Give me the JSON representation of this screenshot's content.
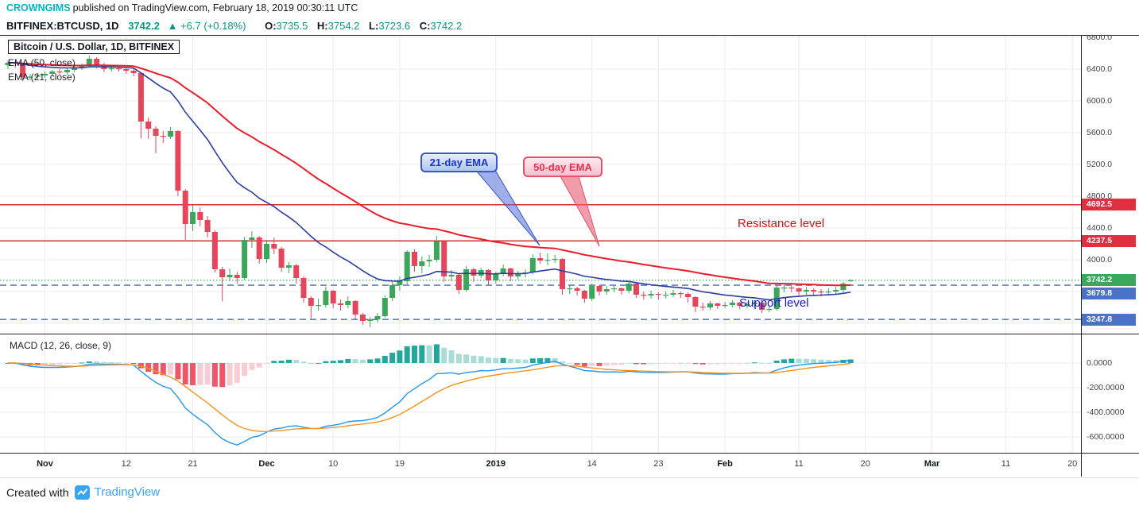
{
  "publish_bar": {
    "author": "CROWNGIMS",
    "text": "published on TradingView.com, February 18, 2019 00:30:11 UTC"
  },
  "symbol_bar": {
    "symbol": "BITFINEX:BTCUSD, 1D",
    "last": "3742.2",
    "change": "▲ +6.7 (+0.18%)",
    "o_label": "O:",
    "o": "3735.5",
    "h_label": "H:",
    "h": "3754.2",
    "l_label": "L:",
    "l": "3723.6",
    "c_label": "C:",
    "c": "3742.2"
  },
  "legend": {
    "title": "Bitcoin / U.S. Dollar, 1D, BITFINEX",
    "ema50": "EMA (50, close)",
    "ema21": "EMA (21, close)",
    "macd": "MACD (12, 26, close, 9)"
  },
  "annotations": {
    "ema21_callout": "21-day EMA",
    "ema50_callout": "50-day EMA",
    "resistance": "Resistance level",
    "support": "Support level"
  },
  "footer": {
    "created_with": "Created with",
    "brand": "TradingView"
  },
  "colors": {
    "author_teal": "#00b7c3",
    "quote_green": "#089981",
    "candle_up": "#3CA75A",
    "candle_down": "#E4465B",
    "ema50": "#EC1C2B",
    "ema21": "#2C3E9E",
    "resistance_line": "#D32F2F",
    "support_line": "#5B7FCE",
    "last_line": "#3CA75A",
    "badge_red": "#E22F40",
    "badge_green": "#3CA75A",
    "badge_blue": "#4A72C9",
    "macd_line": "#2196F3",
    "macd_signal": "#F7931E",
    "hist_pos": "#26A69A",
    "hist_pos_light": "#A8DCD4",
    "hist_neg": "#F1556A",
    "hist_neg_light": "#F8CCD4",
    "grid": "#ECECEC",
    "separator": "#23262e",
    "tail_blue": "#3A56C8",
    "tail_red": "#E2536B"
  },
  "chart_data": {
    "type": "candlestick",
    "title": "Bitcoin / U.S. Dollar, 1D, BITFINEX",
    "symbol": "BITFINEX:BTCUSD",
    "interval": "1D",
    "start_date": "2018-10-27",
    "price_axis": [
      {
        "label": "6800.0",
        "value": 6800
      },
      {
        "label": "6400.0",
        "value": 6400
      },
      {
        "label": "6000.0",
        "value": 6000
      },
      {
        "label": "5600.0",
        "value": 5600
      },
      {
        "label": "5200.0",
        "value": 5200
      },
      {
        "label": "4800.0",
        "value": 4800
      },
      {
        "label": "4400.0",
        "value": 4400
      },
      {
        "label": "4000.0",
        "value": 4000
      },
      {
        "label": "3600.0",
        "value": 3600
      },
      {
        "label": "3200.0",
        "value": 3200
      }
    ],
    "macd_axis": [
      {
        "label": "0.0000",
        "value": 0
      },
      {
        "label": "-200.0000",
        "value": -200
      },
      {
        "label": "-400.0000",
        "value": -400
      },
      {
        "label": "-600.0000",
        "value": -600
      }
    ],
    "time_axis": [
      {
        "label": "Nov",
        "index": 5,
        "major": true
      },
      {
        "label": "12",
        "index": 16,
        "major": false
      },
      {
        "label": "21",
        "index": 25,
        "major": false
      },
      {
        "label": "Dec",
        "index": 35,
        "major": true
      },
      {
        "label": "10",
        "index": 44,
        "major": false
      },
      {
        "label": "19",
        "index": 53,
        "major": false
      },
      {
        "label": "2019",
        "index": 66,
        "major": true
      },
      {
        "label": "14",
        "index": 79,
        "major": false
      },
      {
        "label": "23",
        "index": 88,
        "major": false
      },
      {
        "label": "Feb",
        "index": 97,
        "major": true
      },
      {
        "label": "11",
        "index": 107,
        "major": false
      },
      {
        "label": "20",
        "index": 116,
        "major": false
      },
      {
        "label": "Mar",
        "index": 125,
        "major": true
      },
      {
        "label": "11",
        "index": 135,
        "major": false
      },
      {
        "label": "20",
        "index": 144,
        "major": false
      }
    ],
    "levels": [
      {
        "label": "4692.5",
        "value": 4692.5,
        "kind": "resistance"
      },
      {
        "label": "4237.5",
        "value": 4237.5,
        "kind": "resistance"
      },
      {
        "label": "3742.2",
        "value": 3742.2,
        "kind": "last"
      },
      {
        "label": "3679.8",
        "value": 3679.8,
        "kind": "hline"
      },
      {
        "label": "3247.8",
        "value": 3247.8,
        "kind": "support"
      }
    ],
    "overlays": [
      {
        "name": "EMA 50",
        "period": 50
      },
      {
        "name": "EMA 21",
        "period": 21
      }
    ],
    "macd_settings": {
      "fast": 12,
      "slow": 26,
      "source": "close",
      "signal": 9
    },
    "candles": [
      [
        6450,
        6510,
        6400,
        6480
      ],
      [
        6480,
        6500,
        6420,
        6470
      ],
      [
        6470,
        6480,
        6250,
        6300
      ],
      [
        6300,
        6340,
        6260,
        6305
      ],
      [
        6305,
        6350,
        6270,
        6320
      ],
      [
        6320,
        6370,
        6290,
        6340
      ],
      [
        6340,
        6390,
        6310,
        6370
      ],
      [
        6370,
        6400,
        6330,
        6360
      ],
      [
        6360,
        6410,
        6330,
        6390
      ],
      [
        6390,
        6440,
        6360,
        6420
      ],
      [
        6420,
        6470,
        6390,
        6450
      ],
      [
        6450,
        6570,
        6420,
        6530
      ],
      [
        6530,
        6550,
        6410,
        6450
      ],
      [
        6450,
        6480,
        6360,
        6400
      ],
      [
        6400,
        6440,
        6370,
        6410
      ],
      [
        6410,
        6430,
        6370,
        6400
      ],
      [
        6400,
        6420,
        6340,
        6380
      ],
      [
        6380,
        6400,
        6310,
        6350
      ],
      [
        6350,
        6360,
        5530,
        5740
      ],
      [
        5740,
        5790,
        5520,
        5650
      ],
      [
        5650,
        5680,
        5340,
        5560
      ],
      [
        5560,
        5620,
        5470,
        5550
      ],
      [
        5550,
        5670,
        5520,
        5620
      ],
      [
        5620,
        5630,
        4800,
        4870
      ],
      [
        4870,
        4890,
        4250,
        4450
      ],
      [
        4450,
        4690,
        4360,
        4600
      ],
      [
        4600,
        4660,
        4420,
        4500
      ],
      [
        4500,
        4550,
        4280,
        4350
      ],
      [
        4350,
        4370,
        3840,
        3880
      ],
      [
        3880,
        3910,
        3475,
        3780
      ],
      [
        3780,
        3890,
        3730,
        3810
      ],
      [
        3810,
        3850,
        3700,
        3770
      ],
      [
        3770,
        4290,
        3750,
        4250
      ],
      [
        4250,
        4360,
        4150,
        4280
      ],
      [
        4280,
        4300,
        3950,
        4010
      ],
      [
        4010,
        4250,
        3960,
        4200
      ],
      [
        4200,
        4280,
        4070,
        4140
      ],
      [
        4140,
        4160,
        3850,
        3900
      ],
      [
        3900,
        3970,
        3830,
        3930
      ],
      [
        3930,
        3950,
        3700,
        3770
      ],
      [
        3770,
        3790,
        3460,
        3520
      ],
      [
        3520,
        3540,
        3260,
        3420
      ],
      [
        3420,
        3510,
        3360,
        3430
      ],
      [
        3430,
        3660,
        3400,
        3610
      ],
      [
        3610,
        3620,
        3390,
        3450
      ],
      [
        3450,
        3500,
        3360,
        3430
      ],
      [
        3430,
        3540,
        3390,
        3480
      ],
      [
        3480,
        3490,
        3250,
        3310
      ],
      [
        3310,
        3330,
        3180,
        3230
      ],
      [
        3230,
        3280,
        3150,
        3250
      ],
      [
        3250,
        3330,
        3210,
        3290
      ],
      [
        3290,
        3550,
        3270,
        3520
      ],
      [
        3520,
        3720,
        3480,
        3680
      ],
      [
        3680,
        3790,
        3610,
        3730
      ],
      [
        3730,
        4120,
        3690,
        4100
      ],
      [
        4100,
        4130,
        3850,
        3920
      ],
      [
        3920,
        4040,
        3830,
        3980
      ],
      [
        3980,
        4060,
        3910,
        4000
      ],
      [
        4000,
        4300,
        3970,
        4230
      ],
      [
        4230,
        4240,
        3720,
        3790
      ],
      [
        3790,
        3870,
        3730,
        3810
      ],
      [
        3810,
        3830,
        3570,
        3620
      ],
      [
        3620,
        3920,
        3600,
        3880
      ],
      [
        3880,
        3900,
        3720,
        3800
      ],
      [
        3800,
        3900,
        3770,
        3870
      ],
      [
        3870,
        3880,
        3670,
        3740
      ],
      [
        3740,
        3850,
        3700,
        3830
      ],
      [
        3830,
        3940,
        3790,
        3890
      ],
      [
        3890,
        3900,
        3730,
        3790
      ],
      [
        3790,
        3860,
        3750,
        3830
      ],
      [
        3830,
        3880,
        3780,
        3840
      ],
      [
        3840,
        4070,
        3820,
        4020
      ],
      [
        4020,
        4090,
        3950,
        3990
      ],
      [
        3990,
        4080,
        3930,
        4000
      ],
      [
        4000,
        4060,
        3960,
        4010
      ],
      [
        4010,
        4020,
        3560,
        3630
      ],
      [
        3630,
        3680,
        3570,
        3640
      ],
      [
        3640,
        3660,
        3550,
        3610
      ],
      [
        3610,
        3620,
        3460,
        3510
      ],
      [
        3510,
        3700,
        3480,
        3670
      ],
      [
        3670,
        3680,
        3550,
        3600
      ],
      [
        3600,
        3670,
        3560,
        3630
      ],
      [
        3630,
        3680,
        3590,
        3640
      ],
      [
        3640,
        3650,
        3560,
        3610
      ],
      [
        3610,
        3730,
        3580,
        3700
      ],
      [
        3700,
        3710,
        3520,
        3560
      ],
      [
        3560,
        3600,
        3500,
        3550
      ],
      [
        3550,
        3610,
        3510,
        3570
      ],
      [
        3570,
        3590,
        3500,
        3560
      ],
      [
        3560,
        3600,
        3510,
        3560
      ],
      [
        3560,
        3620,
        3530,
        3580
      ],
      [
        3580,
        3600,
        3520,
        3570
      ],
      [
        3570,
        3590,
        3460,
        3530
      ],
      [
        3530,
        3540,
        3340,
        3410
      ],
      [
        3410,
        3460,
        3360,
        3400
      ],
      [
        3400,
        3480,
        3370,
        3450
      ],
      [
        3450,
        3460,
        3380,
        3420
      ],
      [
        3420,
        3470,
        3390,
        3430
      ],
      [
        3430,
        3490,
        3400,
        3460
      ],
      [
        3460,
        3470,
        3380,
        3420
      ],
      [
        3420,
        3470,
        3390,
        3440
      ],
      [
        3440,
        3490,
        3400,
        3460
      ],
      [
        3460,
        3470,
        3330,
        3370
      ],
      [
        3370,
        3420,
        3340,
        3380
      ],
      [
        3380,
        3680,
        3360,
        3650
      ],
      [
        3650,
        3690,
        3590,
        3650
      ],
      [
        3650,
        3680,
        3590,
        3640
      ],
      [
        3640,
        3650,
        3550,
        3600
      ],
      [
        3600,
        3660,
        3560,
        3620
      ],
      [
        3620,
        3640,
        3550,
        3600
      ],
      [
        3600,
        3630,
        3540,
        3590
      ],
      [
        3590,
        3640,
        3560,
        3600
      ],
      [
        3600,
        3660,
        3570,
        3620
      ],
      [
        3620,
        3720,
        3590,
        3700
      ],
      [
        3735.5,
        3754.2,
        3723.6,
        3742.2
      ]
    ]
  }
}
